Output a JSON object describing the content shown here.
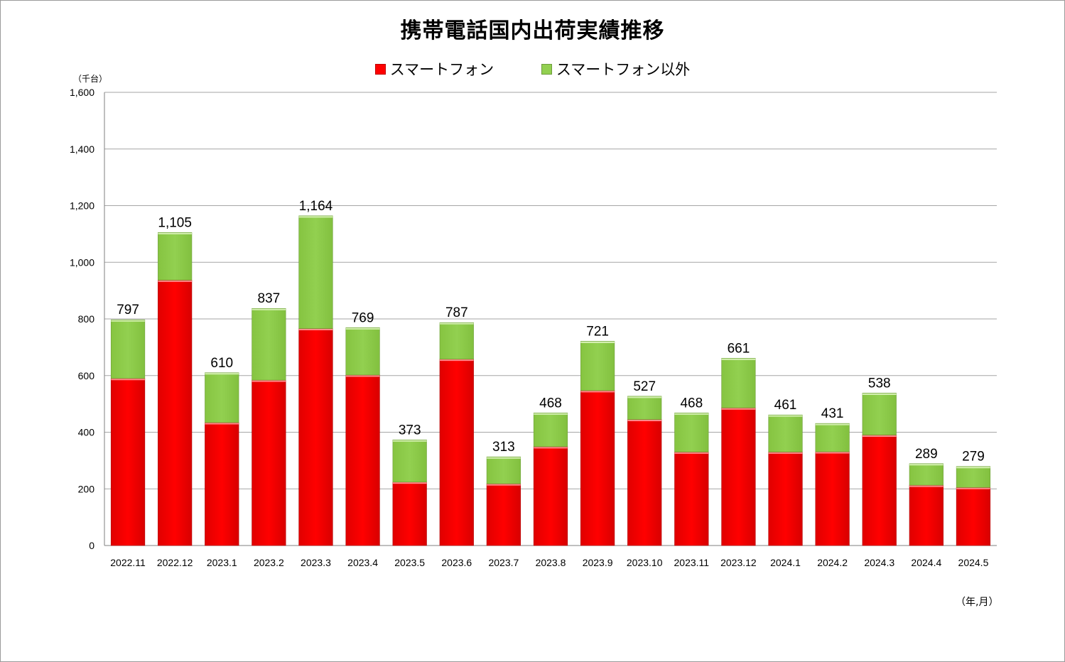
{
  "colors": {
    "smartphone": "#ff0000",
    "other": "#92d050",
    "grid": "#a6a6a6",
    "axis": "#7f7f7f"
  },
  "chart_data": {
    "type": "bar",
    "stacked": true,
    "title": "携帯電話国内出荷実績推移",
    "ylabel": "（千台）",
    "xlabel": "（年,月）",
    "ylim": [
      0,
      1600
    ],
    "yticks": [
      0,
      200,
      400,
      600,
      800,
      1000,
      1200,
      1400,
      1600
    ],
    "ytick_labels": [
      "0",
      "200",
      "400",
      "600",
      "800",
      "1,000",
      "1,200",
      "1,400",
      "1,600"
    ],
    "grid": true,
    "legend_position": "top-center",
    "categories": [
      "2022.11",
      "2022.12",
      "2023.1",
      "2023.2",
      "2023.3",
      "2023.4",
      "2023.5",
      "2023.6",
      "2023.7",
      "2023.8",
      "2023.9",
      "2023.10",
      "2023.11",
      "2023.12",
      "2024.1",
      "2024.2",
      "2024.3",
      "2024.4",
      "2024.5"
    ],
    "series": [
      {
        "name": "スマートフォン",
        "values": [
          590,
          937,
          434,
          584,
          766,
          602,
          224,
          658,
          218,
          349,
          547,
          445,
          330,
          486,
          330,
          331,
          390,
          213,
          205
        ]
      },
      {
        "name": "スマートフォン以外",
        "values": [
          207,
          168,
          176,
          253,
          398,
          167,
          149,
          129,
          95,
          119,
          174,
          82,
          138,
          175,
          131,
          100,
          148,
          76,
          74
        ]
      }
    ],
    "totals": [
      "797",
      "1,105",
      "610",
      "837",
      "1,164",
      "769",
      "373",
      "787",
      "313",
      "468",
      "721",
      "527",
      "468",
      "661",
      "461",
      "431",
      "538",
      "289",
      "279"
    ]
  }
}
